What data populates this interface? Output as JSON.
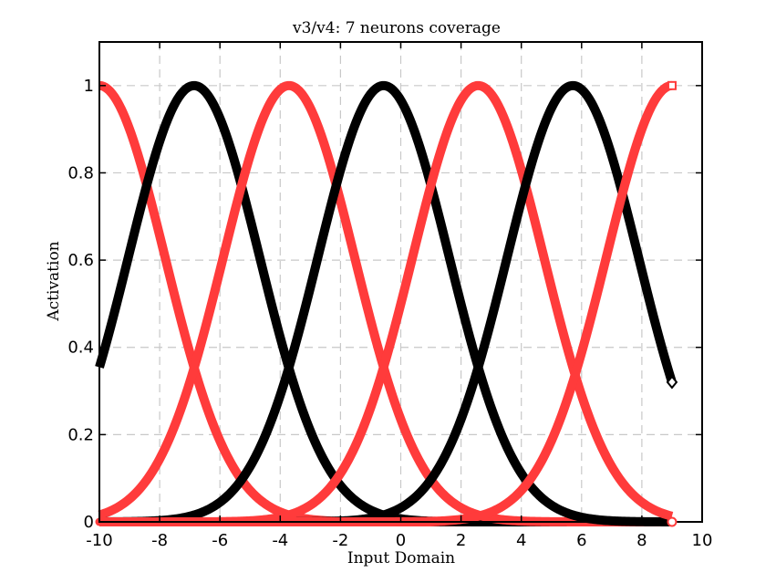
{
  "chart_data": {
    "type": "line",
    "title": "v3/v4: 7 neurons coverage",
    "xlabel": "Input Domain",
    "ylabel": "Activation",
    "xlim": [
      -10,
      10
    ],
    "ylim": [
      0,
      1.1
    ],
    "xticks": [
      "-10",
      "-8",
      "-6",
      "-4",
      "-2",
      "0",
      "2",
      "4",
      "6",
      "8",
      "10"
    ],
    "xtick_values": [
      -10,
      -8,
      -6,
      -4,
      -2,
      0,
      2,
      4,
      6,
      8,
      10
    ],
    "yticks": [
      "0",
      "0.2",
      "0.4",
      "0.6",
      "0.8",
      "1"
    ],
    "ytick_values": [
      0,
      0.2,
      0.4,
      0.6,
      0.8,
      1
    ],
    "grid": true,
    "x_domain": [
      -10,
      9
    ],
    "series": [
      {
        "center": -10.0,
        "sigma": 2.18,
        "color": "#ff3b3b",
        "end_marker": "none"
      },
      {
        "center": -6.86,
        "sigma": 2.18,
        "color": "#000000",
        "end_marker": "none"
      },
      {
        "center": -3.71,
        "sigma": 2.18,
        "color": "#ff3b3b",
        "end_marker": "none"
      },
      {
        "center": -0.57,
        "sigma": 2.18,
        "color": "#000000",
        "end_marker": "none"
      },
      {
        "center": 2.57,
        "sigma": 2.18,
        "color": "#ff3b3b",
        "end_marker": "none"
      },
      {
        "center": 5.71,
        "sigma": 2.18,
        "color": "#000000",
        "end_marker": "diamond"
      },
      {
        "center": 9.0,
        "sigma": 2.18,
        "color": "#ff3b3b",
        "end_marker": "square"
      }
    ],
    "baseline_series": {
      "y": 0.0,
      "color": "#ff3b3b",
      "end_marker": "circle"
    }
  }
}
